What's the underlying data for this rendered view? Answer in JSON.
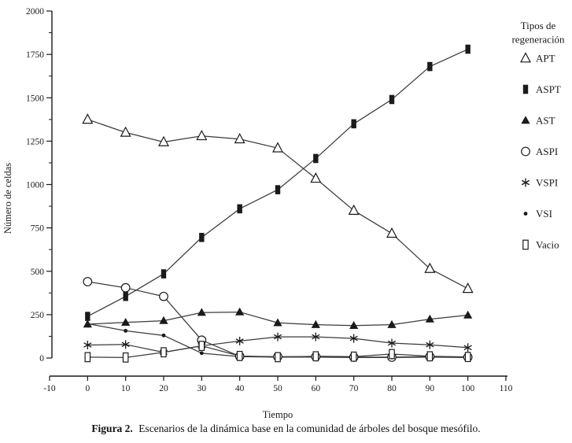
{
  "figure": {
    "caption_label": "Figura 2.",
    "caption_text": "Escenarios de la dinámica base en la comunidad de árboles del bosque mesófilo."
  },
  "colors": {
    "ink": "#1a1a1a",
    "line": "#3a3a3a",
    "legend_line": "#1a1a1a",
    "background": "#ffffff"
  },
  "chart_data": {
    "type": "line",
    "title": "",
    "xlabel": "Tiempo",
    "ylabel": "Número de celdas",
    "xlim": [
      -10,
      110
    ],
    "ylim": [
      0,
      2000
    ],
    "xticks": [
      -10,
      0,
      10,
      20,
      30,
      40,
      50,
      60,
      70,
      80,
      90,
      100,
      110
    ],
    "yticks": [
      0,
      250,
      500,
      750,
      1000,
      1250,
      1500,
      1750,
      2000
    ],
    "y_minor_ticks": [
      125,
      375,
      625,
      875,
      1125,
      1375,
      1625,
      1875
    ],
    "grid": false,
    "legend_position": "right",
    "legend_title_lines": [
      "Tipos de",
      "regeneración"
    ],
    "x": [
      0,
      10,
      20,
      30,
      40,
      50,
      60,
      70,
      80,
      90,
      100
    ],
    "series": [
      {
        "name": "APT",
        "marker": "triangle-open",
        "values": [
          1375,
          1300,
          1245,
          1280,
          1262,
          1210,
          1035,
          850,
          718,
          515,
          400
        ]
      },
      {
        "name": "ASPT",
        "marker": "square-filled",
        "values": [
          240,
          355,
          485,
          695,
          860,
          970,
          1150,
          1350,
          1490,
          1680,
          1780
        ]
      },
      {
        "name": "AST",
        "marker": "triangle-filled",
        "values": [
          195,
          205,
          215,
          262,
          265,
          203,
          192,
          187,
          192,
          224,
          247
        ]
      },
      {
        "name": "ASPI",
        "marker": "circle-open",
        "values": [
          440,
          405,
          355,
          103,
          10,
          8,
          8,
          5,
          5,
          8,
          5
        ]
      },
      {
        "name": "VSPI",
        "marker": "asterisk",
        "values": [
          75,
          78,
          33,
          70,
          98,
          122,
          122,
          113,
          86,
          76,
          60
        ]
      },
      {
        "name": "VSI",
        "marker": "dot",
        "values": [
          198,
          157,
          130,
          28,
          8,
          5,
          5,
          3,
          3,
          5,
          3
        ]
      },
      {
        "name": "Vacio",
        "marker": "square-open",
        "values": [
          5,
          3,
          33,
          70,
          12,
          5,
          10,
          8,
          23,
          10,
          6
        ]
      }
    ]
  }
}
